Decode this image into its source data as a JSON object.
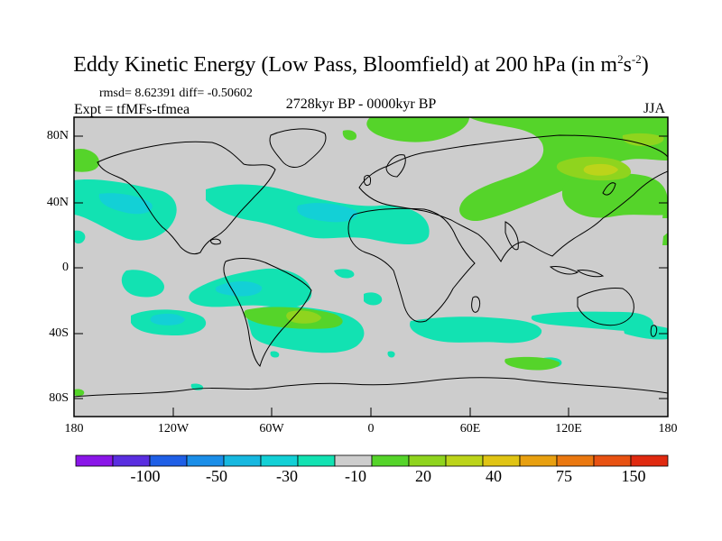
{
  "title": {
    "main": "Eddy Kinetic Energy (Low Pass, Bloomfield) at 200 hPa (in m",
    "sup1": "2",
    "mid": "s",
    "sup2": "-2",
    "end": ")"
  },
  "stats": "rmsd= 8.62391 diff= -0.50602",
  "expt": "Expt = tfMFs-tfmea",
  "period": "2728kyr BP - 0000kyr BP",
  "season": "JJA",
  "map": {
    "lat_ticks": [
      "80N",
      "40N",
      "0",
      "40S",
      "80S"
    ],
    "lon_ticks": [
      "180",
      "120W",
      "60W",
      "0",
      "60E",
      "120E",
      "180"
    ],
    "background_color": "#cdcdcd"
  },
  "colorbar": {
    "colors": [
      "#8a16e8",
      "#5a2ee0",
      "#1f5fe6",
      "#1b8ee8",
      "#17b8e0",
      "#13d0d6",
      "#12e2b2",
      "#cdcdcd",
      "#55d42a",
      "#8fd41e",
      "#bcd41a",
      "#e0c414",
      "#e8a010",
      "#ea7810",
      "#e85212",
      "#e02a10"
    ],
    "labels": [
      "-100",
      "-50",
      "-30",
      "-10",
      "20",
      "40",
      "75",
      "150"
    ]
  }
}
